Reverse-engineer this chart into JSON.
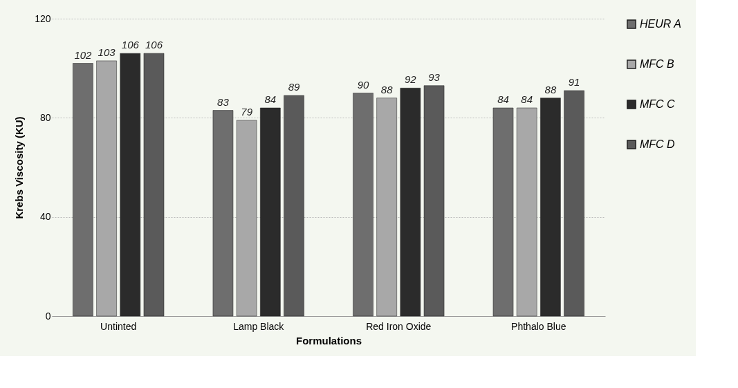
{
  "chart_data": {
    "type": "bar",
    "xlabel": "Formulations",
    "ylabel": "Krebs Viscosity (KU)",
    "categories": [
      "Untinted",
      "Lamp Black",
      "Red Iron Oxide",
      "Phthalo Blue"
    ],
    "series": [
      {
        "name": "HEUR A",
        "color": "#6e6e6e",
        "values": [
          102,
          83,
          90,
          84
        ]
      },
      {
        "name": "MFC B",
        "color": "#a8a8a8",
        "values": [
          103,
          79,
          88,
          84
        ]
      },
      {
        "name": "MFC C",
        "color": "#2b2b2b",
        "values": [
          106,
          84,
          92,
          88
        ]
      },
      {
        "name": "MFC D",
        "color": "#5a5a5a",
        "values": [
          106,
          89,
          93,
          91
        ]
      }
    ],
    "ylim": [
      0,
      120
    ],
    "yticks": [
      0,
      40,
      80,
      120
    ],
    "grid": "y",
    "legend": "right",
    "data_labels": true
  }
}
